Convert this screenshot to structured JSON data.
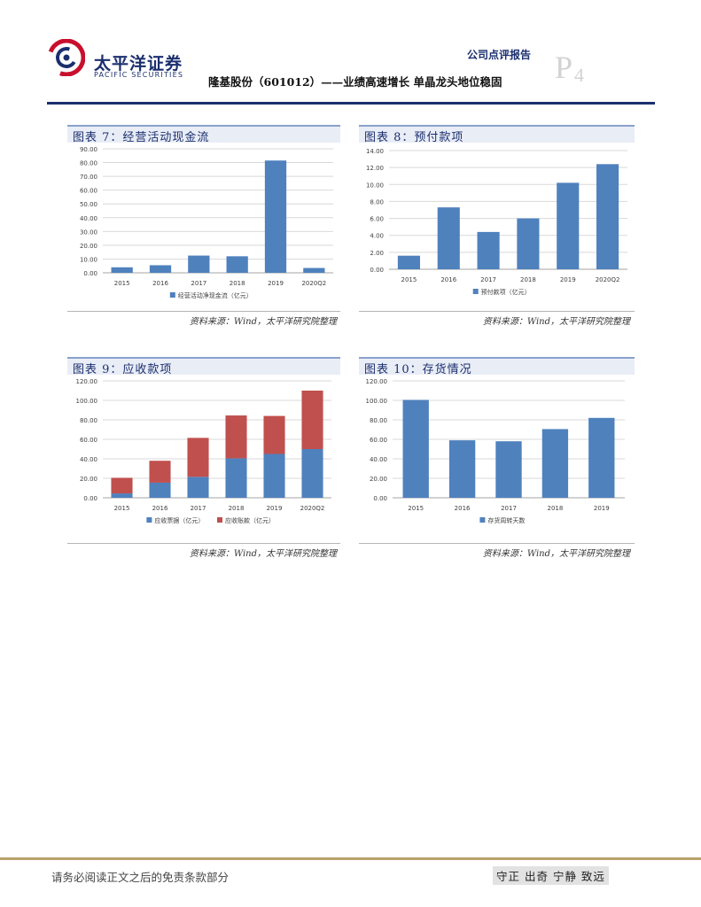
{
  "header": {
    "brand_cn": "太平洋证券",
    "brand_en": "PACIFIC SECURITIES",
    "report_type": "公司点评报告",
    "page_letter": "P",
    "page_number": "4",
    "doc_title": "隆基股份（601012）——业绩高速增长 单晶龙头地位稳固",
    "colors": {
      "brand": "#1b2f6e",
      "logo_red": "#c8102e"
    }
  },
  "figures": [
    {
      "title": "图表 7：经营活动现金流",
      "source": "资料来源：Wind，太平洋研究院整理"
    },
    {
      "title": "图表 8：预付款项",
      "source": "资料来源：Wind，太平洋研究院整理"
    },
    {
      "title": "图表 9：应收款项",
      "source": "资料来源：Wind，太平洋研究院整理"
    },
    {
      "title": "图表 10：存货情况",
      "source": "资料来源：Wind，太平洋研究院整理"
    }
  ],
  "chart_data": [
    {
      "type": "bar",
      "title": "经营活动现金流",
      "categories": [
        "2015",
        "2016",
        "2017",
        "2018",
        "2019",
        "2020Q2"
      ],
      "series": [
        {
          "name": "经营活动净现金流（亿元）",
          "values": [
            4.0,
            5.5,
            12.5,
            12.0,
            81.5,
            3.5
          ],
          "color": "#4f81bd"
        }
      ],
      "ylim": [
        0,
        90
      ],
      "yticks": [
        0,
        10,
        20,
        30,
        40,
        50,
        60,
        70,
        80,
        90
      ],
      "ytick_labels": [
        "0.00",
        "10.00",
        "20.00",
        "30.00",
        "40.00",
        "50.00",
        "60.00",
        "70.00",
        "80.00",
        "90.00"
      ],
      "stacked": false,
      "legend": "bottom-center"
    },
    {
      "type": "bar",
      "title": "预付款项",
      "categories": [
        "2015",
        "2016",
        "2017",
        "2018",
        "2019",
        "2020Q2"
      ],
      "series": [
        {
          "name": "预付款项（亿元）",
          "values": [
            1.6,
            7.3,
            4.4,
            6.0,
            10.2,
            12.4
          ],
          "color": "#4f81bd"
        }
      ],
      "ylim": [
        0,
        14
      ],
      "yticks": [
        0,
        2,
        4,
        6,
        8,
        10,
        12,
        14
      ],
      "ytick_labels": [
        "0.00",
        "2.00",
        "4.00",
        "6.00",
        "8.00",
        "10.00",
        "12.00",
        "14.00"
      ],
      "stacked": false,
      "legend": "bottom-center"
    },
    {
      "type": "bar",
      "title": "应收款项",
      "categories": [
        "2015",
        "2016",
        "2017",
        "2018",
        "2019",
        "2020Q2"
      ],
      "series": [
        {
          "name": "应收票据（亿元）",
          "values": [
            4.5,
            15.5,
            21.5,
            40.5,
            45.0,
            50.0
          ],
          "color": "#4f81bd"
        },
        {
          "name": "应收账款（亿元）",
          "values": [
            16.0,
            22.5,
            40.0,
            44.0,
            39.0,
            60.0
          ],
          "color": "#c0504d"
        }
      ],
      "ylim": [
        0,
        120
      ],
      "yticks": [
        0,
        20,
        40,
        60,
        80,
        100,
        120
      ],
      "ytick_labels": [
        "0.00",
        "20.00",
        "40.00",
        "60.00",
        "80.00",
        "100.00",
        "120.00"
      ],
      "stacked": true,
      "legend": "bottom-center"
    },
    {
      "type": "bar",
      "title": "存货情况",
      "categories": [
        "2015",
        "2016",
        "2017",
        "2018",
        "2019"
      ],
      "series": [
        {
          "name": "存货周转天数",
          "values": [
            100.5,
            59.0,
            58.0,
            70.5,
            82.0
          ],
          "color": "#4f81bd"
        }
      ],
      "ylim": [
        0,
        120
      ],
      "yticks": [
        0,
        20,
        40,
        60,
        80,
        100,
        120
      ],
      "ytick_labels": [
        "0.00",
        "20.00",
        "40.00",
        "60.00",
        "80.00",
        "100.00",
        "120.00"
      ],
      "stacked": false,
      "legend": "bottom-center"
    }
  ],
  "footer": {
    "disclaimer": "请务必阅读正文之后的免责条款部分",
    "motto": "守正 出奇 宁静 致远"
  }
}
